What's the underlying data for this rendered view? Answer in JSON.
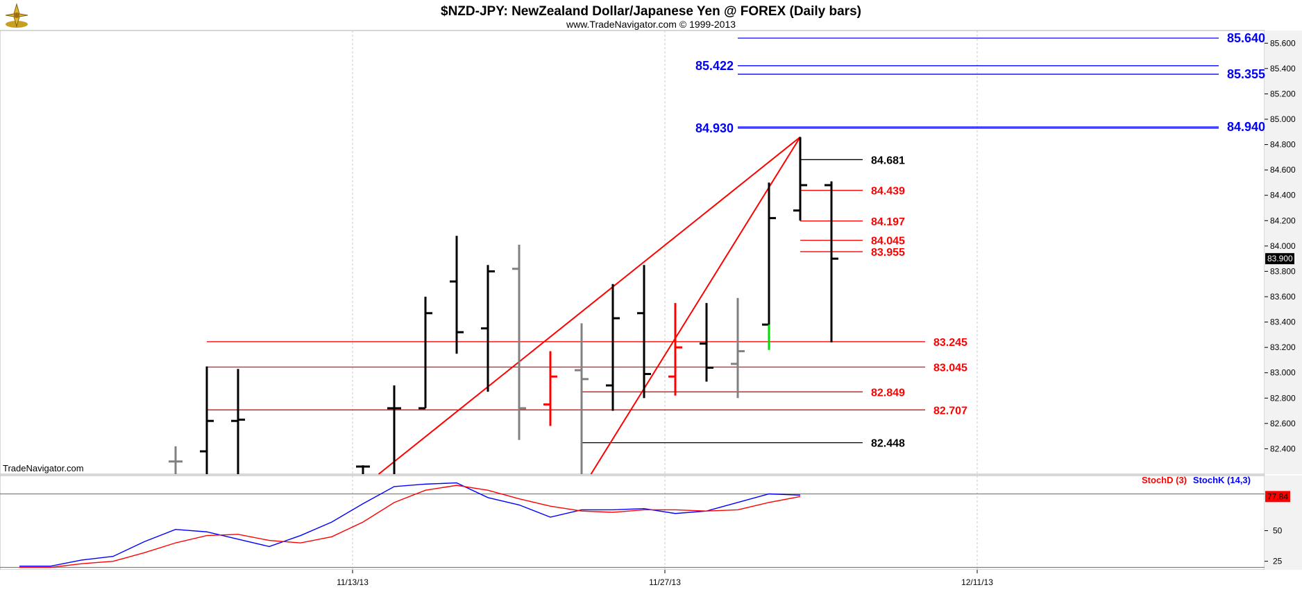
{
  "header": {
    "title": "$NZD-JPY:  NewZealand Dollar/Japanese Yen @ FOREX  (Daily bars)",
    "subtitle": "www.TradeNavigator.com © 1999-2013"
  },
  "watermark": "TradeNavigator.com",
  "legend": {
    "stoch_d": "StochD (3)",
    "stoch_k": "StochK (14,3)"
  },
  "colors": {
    "up_bar": "#000000",
    "neutral_bar": "#808080",
    "down_bar": "#ff0000",
    "green_bar": "#00dd00",
    "level_blue": "#0000ff",
    "level_red": "#ff0000",
    "level_black": "#000000",
    "stoch_k": "#0000ff",
    "stoch_d": "#ff0000",
    "last_price_bg": "#000000",
    "stoch_value_bg": "#ff0000"
  },
  "chart_data": [
    {
      "type": "ohlc",
      "title": "$NZD-JPY:  NewZealand Dollar/Japanese Yen @ FOREX  (Daily bars)",
      "ylim": [
        82.2,
        85.7
      ],
      "y_ticks": [
        "85.600",
        "85.400",
        "85.200",
        "85.000",
        "84.800",
        "84.600",
        "84.400",
        "84.200",
        "84.000",
        "83.800",
        "83.600",
        "83.400",
        "83.200",
        "83.000",
        "82.800",
        "82.600",
        "82.400"
      ],
      "x_ticks": [
        "11/13/13",
        "11/27/13",
        "12/11/13"
      ],
      "last_price": "83.900",
      "bars": [
        {
          "x": 5,
          "color": "neutral",
          "high": 82.42,
          "low": 82.2,
          "open": 82.3,
          "close": 82.3
        },
        {
          "x": 6,
          "color": "up",
          "high": 83.05,
          "low": 82.2,
          "open": 82.38,
          "close": 82.62
        },
        {
          "x": 7,
          "color": "up",
          "high": 83.03,
          "low": 82.2,
          "open": 82.62,
          "close": 82.63
        },
        {
          "x": 11,
          "color": "up",
          "high": 82.27,
          "low": 82.2,
          "open": 82.26,
          "close": 82.26
        },
        {
          "x": 12,
          "color": "up",
          "high": 82.9,
          "low": 82.2,
          "open": 82.72,
          "close": 82.72
        },
        {
          "x": 13,
          "color": "up",
          "high": 83.6,
          "low": 82.72,
          "open": 82.72,
          "close": 83.47
        },
        {
          "x": 14,
          "color": "up",
          "high": 84.08,
          "low": 83.15,
          "open": 83.72,
          "close": 83.32
        },
        {
          "x": 15,
          "color": "up",
          "high": 83.85,
          "low": 82.85,
          "open": 83.35,
          "close": 83.8
        },
        {
          "x": 16,
          "color": "neutral",
          "high": 84.01,
          "low": 82.47,
          "open": 83.82,
          "close": 82.72
        },
        {
          "x": 17,
          "color": "down",
          "high": 83.17,
          "low": 82.58,
          "open": 82.75,
          "close": 82.97
        },
        {
          "x": 18,
          "color": "neutral",
          "high": 83.39,
          "low": 82.2,
          "open": 83.02,
          "close": 82.95
        },
        {
          "x": 19,
          "color": "up",
          "high": 83.7,
          "low": 82.7,
          "open": 82.9,
          "close": 83.43
        },
        {
          "x": 20,
          "color": "up",
          "high": 83.85,
          "low": 82.8,
          "open": 83.47,
          "close": 82.99
        },
        {
          "x": 21,
          "color": "down",
          "high": 83.55,
          "low": 82.82,
          "open": 82.97,
          "close": 83.2
        },
        {
          "x": 22,
          "color": "up",
          "high": 83.55,
          "low": 82.93,
          "open": 83.23,
          "close": 83.04
        },
        {
          "x": 23,
          "color": "neutral",
          "high": 83.59,
          "low": 82.8,
          "open": 83.07,
          "close": 83.17
        },
        {
          "x": 24,
          "color": "up",
          "high": 84.5,
          "low": 83.2,
          "open": 83.38,
          "close": 84.22
        },
        {
          "x": 25,
          "color": "up",
          "high": 84.86,
          "low": 84.2,
          "open": 84.28,
          "close": 84.48
        },
        {
          "x": 26,
          "color": "up",
          "high": 84.51,
          "low": 83.24,
          "open": 84.48,
          "close": 83.9
        }
      ],
      "green_segment": {
        "x": 24,
        "from": 83.18,
        "to": 83.38
      },
      "levels": [
        {
          "label": "85.640",
          "value": 85.64,
          "color": "blue",
          "x1": 23,
          "x2": 38.4,
          "label_side": "right"
        },
        {
          "label": "85.422",
          "value": 85.422,
          "color": "blue",
          "x1": 23,
          "x2": 38.4,
          "label_side": "left"
        },
        {
          "label": "85.355",
          "value": 85.355,
          "color": "blue",
          "x1": 23,
          "x2": 38.4,
          "label_side": "right"
        },
        {
          "label": "84.930",
          "value": 84.93,
          "color": "blue",
          "x1": 23,
          "x2": 38.4,
          "label_side": "left"
        },
        {
          "label": "84.940",
          "value": 84.94,
          "color": "blue",
          "x1": 23,
          "x2": 38.4,
          "label_side": "right"
        },
        {
          "label": "84.681",
          "value": 84.681,
          "color": "black",
          "x1": 25,
          "x2": 27,
          "label_side": "right"
        },
        {
          "label": "84.439",
          "value": 84.439,
          "color": "red",
          "x1": 25,
          "x2": 27,
          "label_side": "right"
        },
        {
          "label": "84.197",
          "value": 84.197,
          "color": "red",
          "x1": 25,
          "x2": 27,
          "label_side": "right"
        },
        {
          "label": "84.045",
          "value": 84.045,
          "color": "red",
          "x1": 25,
          "x2": 27,
          "label_side": "right"
        },
        {
          "label": "83.955",
          "value": 83.955,
          "color": "red",
          "x1": 25,
          "x2": 27,
          "label_side": "right"
        },
        {
          "label": "83.245",
          "value": 83.245,
          "color": "red",
          "x1": 6,
          "x2": 29,
          "label_side": "right"
        },
        {
          "label": "83.045",
          "value": 83.045,
          "color": "red",
          "x1": 6,
          "x2": 29,
          "label_side": "right"
        },
        {
          "label": "82.849",
          "value": 82.849,
          "color": "red",
          "x1": 18,
          "x2": 27,
          "label_side": "right"
        },
        {
          "label": "82.707",
          "value": 82.707,
          "color": "red",
          "x1": 6,
          "x2": 29,
          "label_side": "right"
        },
        {
          "label": "82.448",
          "value": 82.448,
          "color": "black",
          "x1": 18,
          "x2": 27,
          "label_side": "right"
        }
      ],
      "trendlines": [
        {
          "x1": 11.5,
          "y1": 82.2,
          "x2": 25,
          "y2": 84.86
        },
        {
          "x1": 18.3,
          "y1": 82.2,
          "x2": 25,
          "y2": 84.86
        }
      ]
    },
    {
      "type": "line",
      "ylim": [
        18,
        95
      ],
      "y_ticks": [
        "50",
        "25"
      ],
      "reference_lines": [
        80,
        20
      ],
      "value_label": "77.84",
      "x": [
        0,
        1,
        2,
        3,
        4,
        5,
        6,
        7,
        8,
        9,
        10,
        11,
        12,
        13,
        14,
        15,
        16,
        17,
        18,
        19,
        20,
        21,
        22,
        23,
        24,
        25,
        26
      ],
      "series": [
        {
          "name": "StochK (14,3)",
          "color": "blue",
          "values": [
            21,
            21,
            26,
            29,
            41,
            51,
            49,
            43,
            37,
            46,
            57,
            72,
            86,
            88,
            89,
            77,
            71,
            61,
            67,
            67,
            68,
            64,
            66,
            73,
            80,
            79,
            null
          ]
        },
        {
          "name": "StochD (3)",
          "color": "red",
          "values": [
            20,
            20,
            23,
            25,
            32,
            40,
            46,
            47,
            42,
            40,
            45,
            57,
            73,
            83,
            87,
            83,
            76,
            70,
            66,
            65,
            67,
            67,
            66,
            67,
            73,
            77.84,
            null
          ]
        }
      ]
    }
  ]
}
